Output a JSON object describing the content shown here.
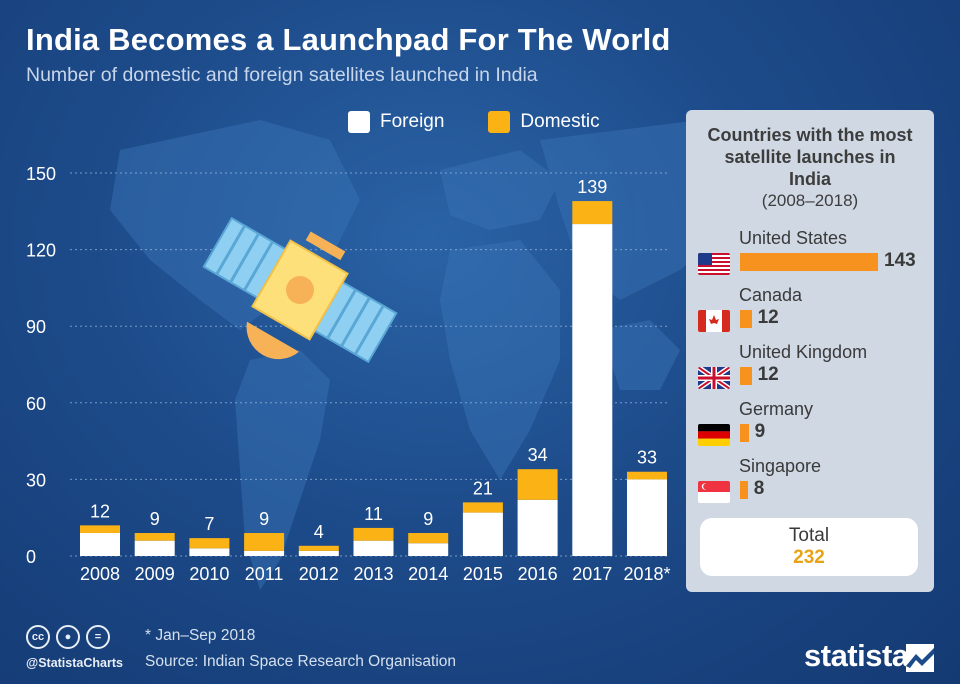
{
  "title": "India Becomes a Launchpad For The World",
  "subtitle": "Number of domestic and foreign satellites launched in India",
  "legend": {
    "foreign": "Foreign",
    "domestic": "Domestic"
  },
  "colors": {
    "foreign": "#ffffff",
    "domestic": "#fbb215",
    "panel_bar": "#f7921e",
    "total": "#e8a314"
  },
  "chart_data": {
    "type": "bar",
    "stacked": true,
    "categories": [
      "2008",
      "2009",
      "2010",
      "2011",
      "2012",
      "2013",
      "2014",
      "2015",
      "2016",
      "2017",
      "2018*"
    ],
    "series": [
      {
        "name": "Foreign",
        "values": [
          9,
          6,
          3,
          2,
          2,
          6,
          5,
          17,
          22,
          130,
          30
        ]
      },
      {
        "name": "Domestic",
        "values": [
          3,
          3,
          4,
          7,
          2,
          5,
          4,
          4,
          12,
          9,
          3
        ]
      }
    ],
    "totals": [
      "12",
      "9",
      "7",
      "9",
      "4",
      "11",
      "9",
      "21",
      "34",
      "139",
      "33"
    ],
    "yticks": [
      "0",
      "30",
      "60",
      "90",
      "120",
      "150"
    ],
    "ylim": [
      0,
      150
    ],
    "grid": true,
    "legend_position": "top"
  },
  "panel": {
    "title": "Countries with the most satellite launches in India",
    "subtitle": "(2008–2018)",
    "countries": [
      {
        "name": "United States",
        "value": 143,
        "label": "143",
        "flag": "us-flag-icon"
      },
      {
        "name": "Canada",
        "value": 12,
        "label": "12",
        "flag": "canada-flag-icon"
      },
      {
        "name": "United Kingdom",
        "value": 12,
        "label": "12",
        "flag": "uk-flag-icon"
      },
      {
        "name": "Germany",
        "value": 9,
        "label": "9",
        "flag": "germany-flag-icon"
      },
      {
        "name": "Singapore",
        "value": 8,
        "label": "8",
        "flag": "singapore-flag-icon"
      }
    ],
    "total_label": "Total",
    "total_value": "232"
  },
  "footer": {
    "note": "* Jan–Sep 2018",
    "source": "Source: Indian Space Research Organisation",
    "handle": "@StatistaCharts",
    "brand": "statista",
    "license_icons": [
      "cc",
      "by",
      "nd"
    ]
  },
  "decoration": {
    "illustration": "satellite-icon",
    "background": "world-map"
  }
}
